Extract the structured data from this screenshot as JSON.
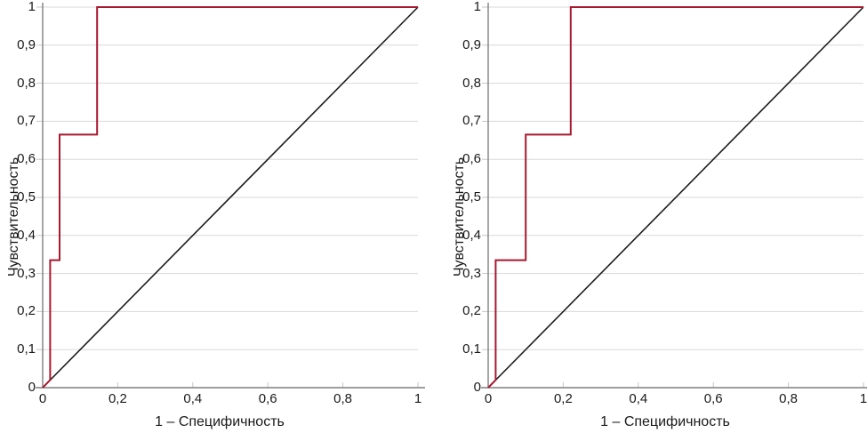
{
  "style": {
    "roc_color": "#a8182f",
    "reference_color": "#1c1c1c",
    "grid_color": "#d9d9d9",
    "tick_color": "#c6c6c6",
    "axis_color": "#7f7f7f",
    "text_color": "#1a1a1a"
  },
  "chart_data": [
    {
      "type": "line",
      "title": "",
      "xlabel": "1 – Специфичность",
      "ylabel": "Чувствительность",
      "xlim": [
        0,
        1
      ],
      "ylim": [
        0,
        1
      ],
      "grid": "horizontal",
      "legend": "none",
      "x_tick_values": [
        0,
        0.2,
        0.4,
        0.6,
        0.8,
        1
      ],
      "x_tick_labels": [
        "0",
        "0,2",
        "0,4",
        "0,6",
        "0,8",
        "1"
      ],
      "y_tick_values": [
        0,
        0.1,
        0.2,
        0.3,
        0.4,
        0.5,
        0.6,
        0.7,
        0.8,
        0.9,
        1
      ],
      "y_tick_labels": [
        "0",
        "0,1",
        "0,2",
        "0,3",
        "0,4",
        "0,5",
        "0,6",
        "0,7",
        "0,8",
        "0,9",
        "1"
      ],
      "series": [
        {
          "name": "reference-line",
          "color_key": "reference_color",
          "width": 1.6,
          "points": [
            [
              0,
              0
            ],
            [
              1,
              1
            ]
          ]
        },
        {
          "name": "roc-curve",
          "color_key": "roc_color",
          "width": 2,
          "points": [
            [
              0,
              0
            ],
            [
              0.02,
              0.02
            ],
            [
              0.02,
              0.335
            ],
            [
              0.045,
              0.335
            ],
            [
              0.045,
              0.665
            ],
            [
              0.145,
              0.665
            ],
            [
              0.145,
              1
            ],
            [
              1,
              1
            ]
          ]
        }
      ]
    },
    {
      "type": "line",
      "title": "",
      "xlabel": "1 – Специфичность",
      "ylabel": "Чувствительность",
      "xlim": [
        0,
        1
      ],
      "ylim": [
        0,
        1
      ],
      "grid": "horizontal",
      "legend": "none",
      "x_tick_values": [
        0,
        0.2,
        0.4,
        0.6,
        0.8,
        1
      ],
      "x_tick_labels": [
        "0",
        "0,2",
        "0,4",
        "0,6",
        "0,8",
        "1"
      ],
      "y_tick_values": [
        0,
        0.1,
        0.2,
        0.3,
        0.4,
        0.5,
        0.6,
        0.7,
        0.8,
        0.9,
        1
      ],
      "y_tick_labels": [
        "0",
        "0,1",
        "0,2",
        "0,3",
        "0,4",
        "0,5",
        "0,6",
        "0,7",
        "0,8",
        "0,9",
        "1"
      ],
      "series": [
        {
          "name": "reference-line",
          "color_key": "reference_color",
          "width": 1.6,
          "points": [
            [
              0,
              0
            ],
            [
              1,
              1
            ]
          ]
        },
        {
          "name": "roc-curve",
          "color_key": "roc_color",
          "width": 2,
          "points": [
            [
              0,
              0
            ],
            [
              0.02,
              0.02
            ],
            [
              0.02,
              0.335
            ],
            [
              0.1,
              0.335
            ],
            [
              0.1,
              0.665
            ],
            [
              0.22,
              0.665
            ],
            [
              0.22,
              1
            ],
            [
              1,
              1
            ]
          ]
        }
      ]
    }
  ]
}
